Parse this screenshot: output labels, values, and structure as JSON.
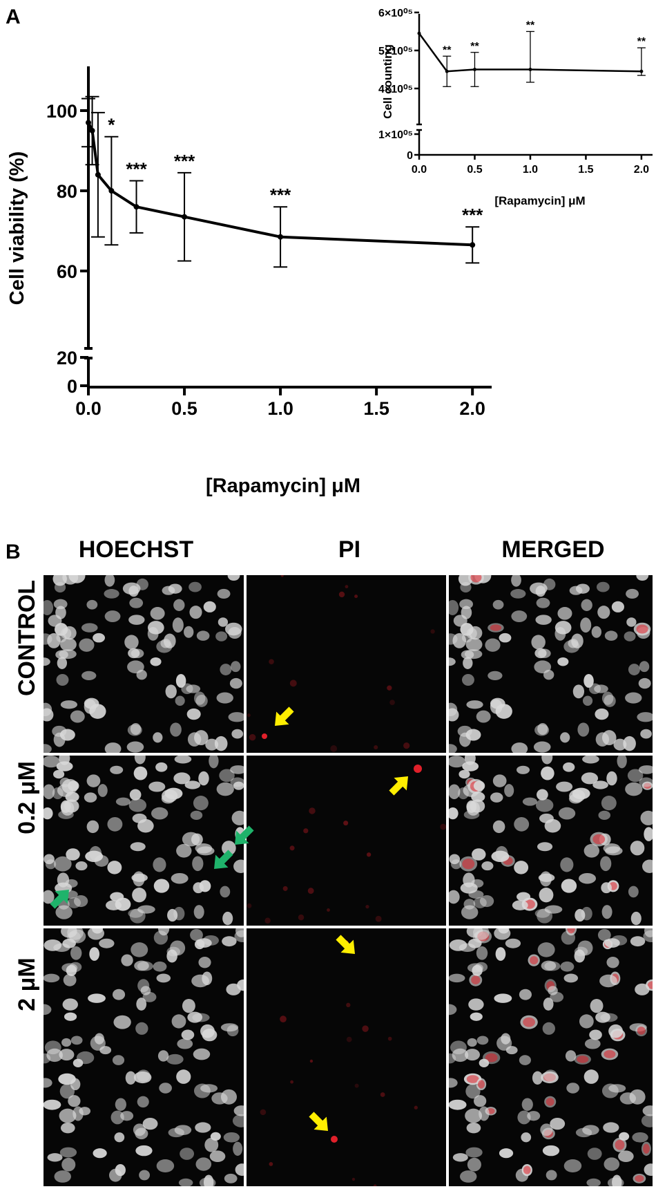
{
  "panel_a": {
    "letter": "A",
    "chart_data": {
      "type": "line",
      "ylabel": "Cell viability (%)",
      "xlabel": "[Rapamycin] μM",
      "xlim": [
        0,
        2.1
      ],
      "x_ticks": [
        "0.0",
        "0.5",
        "1.0",
        "1.5",
        "2.0"
      ],
      "x_tick_values": [
        0,
        0.5,
        1.0,
        1.5,
        2.0
      ],
      "y_ticks": [
        "0",
        "20",
        "60",
        "80",
        "100"
      ],
      "y_tick_values": [
        0,
        20,
        60,
        80,
        100
      ],
      "y_axis_break": [
        20,
        60
      ],
      "series": [
        {
          "x": [
            0,
            0.02,
            0.05,
            0.12,
            0.25,
            0.5,
            1.0,
            2.0
          ],
          "y": [
            97,
            95,
            84,
            80,
            76,
            73.5,
            68.5,
            66.5
          ],
          "error": [
            6,
            8.5,
            15.5,
            13.5,
            6.5,
            11,
            7.5,
            4.5
          ],
          "significance": [
            "",
            "",
            "",
            "*",
            "***",
            "***",
            "***",
            "***"
          ]
        }
      ],
      "grid": false
    }
  },
  "inset": {
    "chart_data": {
      "type": "line",
      "ylabel": "Cell counting",
      "xlabel": "[Rapamycin] μM",
      "xlim": [
        0,
        2.1
      ],
      "x_ticks": [
        "0.0",
        "0.5",
        "1.0",
        "1.5",
        "2.0"
      ],
      "x_tick_values": [
        0,
        0.5,
        1.0,
        1.5,
        2.0
      ],
      "y_ticks": [
        "0",
        "1×10⁰⁵",
        "4×10⁰⁵",
        "5×10⁰⁵",
        "6×10⁰⁵"
      ],
      "y_tick_values": [
        0,
        100000,
        400000,
        500000,
        600000
      ],
      "y_axis_break": [
        100000,
        400000
      ],
      "series": [
        {
          "x": [
            0,
            0.25,
            0.5,
            1.0,
            2.0
          ],
          "y": [
            545000,
            445000,
            450000,
            450000,
            445000
          ],
          "error": [
            0,
            40000,
            45000,
            100000,
            62000
          ],
          "significance": [
            "",
            "**",
            "**",
            "**",
            "**"
          ]
        }
      ]
    }
  },
  "panel_b": {
    "letter": "B",
    "columns": [
      "HOECHST",
      "PI",
      "MERGED"
    ],
    "rows": [
      "CONTROL",
      "0.2 μM",
      "2 μM"
    ],
    "arrow_colors": {
      "pi": "#ffee00",
      "apoptotic": "#1fb36b"
    },
    "colors": {
      "nucleus": "#d9d9d9",
      "pi_signal": "#e0202a",
      "background": "#060606"
    }
  }
}
